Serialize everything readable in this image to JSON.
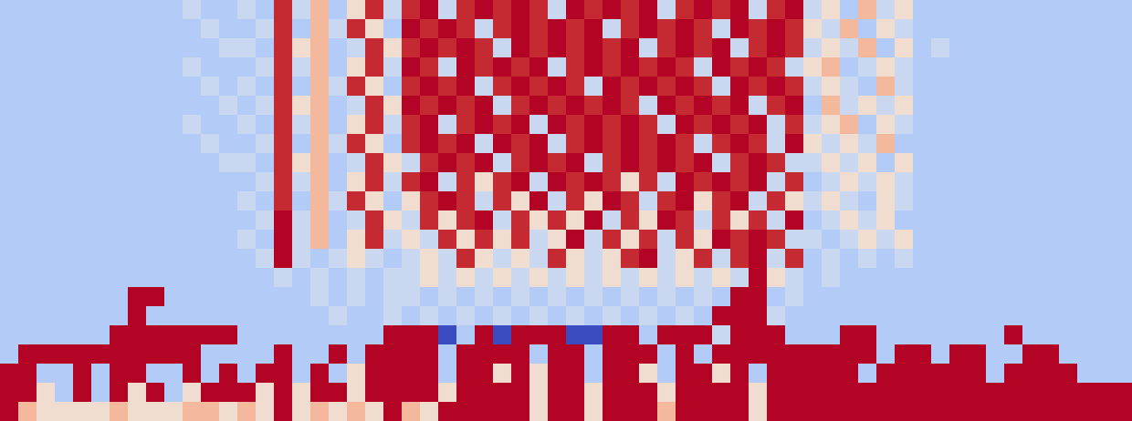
{
  "chart_data": {
    "type": "heatmap",
    "tick_labels": false,
    "zlim": [
      0,
      9
    ],
    "z": [
      [
        3,
        3,
        3,
        3,
        3,
        3,
        3,
        3,
        3,
        3,
        4,
        3,
        3,
        4,
        3,
        8,
        4,
        6,
        3,
        5,
        8,
        4,
        8,
        9,
        4,
        8,
        9,
        8,
        9,
        8,
        4,
        9,
        8,
        9,
        8,
        9,
        4,
        8,
        9,
        8,
        9,
        4,
        8,
        9,
        4,
        5,
        3,
        6,
        4,
        5,
        3,
        3,
        3,
        3,
        3,
        3,
        3,
        3,
        3,
        3,
        3,
        3
      ],
      [
        3,
        3,
        3,
        3,
        3,
        3,
        3,
        3,
        3,
        3,
        3,
        4,
        3,
        3,
        4,
        8,
        3,
        6,
        4,
        8,
        5,
        3,
        9,
        8,
        9,
        8,
        4,
        8,
        9,
        8,
        9,
        8,
        9,
        4,
        8,
        9,
        8,
        9,
        8,
        4,
        9,
        8,
        9,
        8,
        5,
        4,
        6,
        3,
        5,
        4,
        3,
        3,
        3,
        3,
        3,
        3,
        3,
        3,
        3,
        3,
        3,
        3
      ],
      [
        3,
        3,
        3,
        3,
        3,
        3,
        3,
        3,
        3,
        3,
        3,
        3,
        4,
        4,
        3,
        8,
        5,
        6,
        3,
        4,
        8,
        5,
        8,
        9,
        8,
        9,
        8,
        4,
        9,
        8,
        9,
        8,
        9,
        8,
        9,
        4,
        8,
        9,
        8,
        9,
        4,
        8,
        9,
        8,
        4,
        5,
        4,
        6,
        3,
        5,
        3,
        4,
        3,
        3,
        3,
        3,
        3,
        3,
        3,
        3,
        3,
        3
      ],
      [
        3,
        3,
        3,
        3,
        3,
        3,
        3,
        3,
        3,
        3,
        4,
        3,
        3,
        3,
        4,
        8,
        4,
        6,
        3,
        5,
        8,
        4,
        9,
        8,
        4,
        9,
        8,
        9,
        8,
        9,
        4,
        8,
        9,
        8,
        9,
        8,
        9,
        8,
        4,
        9,
        8,
        9,
        8,
        4,
        5,
        6,
        3,
        4,
        5,
        4,
        3,
        3,
        3,
        3,
        3,
        3,
        3,
        3,
        3,
        3,
        3,
        3
      ],
      [
        3,
        3,
        3,
        3,
        3,
        3,
        3,
        3,
        3,
        3,
        3,
        4,
        3,
        4,
        3,
        8,
        3,
        6,
        4,
        8,
        5,
        3,
        8,
        9,
        8,
        9,
        4,
        8,
        9,
        8,
        9,
        8,
        4,
        9,
        8,
        9,
        8,
        9,
        8,
        4,
        9,
        8,
        9,
        8,
        4,
        5,
        4,
        3,
        6,
        4,
        3,
        3,
        3,
        3,
        3,
        3,
        3,
        3,
        3,
        3,
        3,
        3
      ],
      [
        3,
        3,
        3,
        3,
        3,
        3,
        3,
        3,
        3,
        3,
        3,
        3,
        4,
        3,
        4,
        8,
        5,
        6,
        3,
        4,
        8,
        5,
        9,
        8,
        9,
        8,
        9,
        4,
        8,
        9,
        8,
        9,
        8,
        9,
        8,
        4,
        9,
        8,
        9,
        8,
        9,
        4,
        8,
        9,
        3,
        6,
        4,
        5,
        4,
        5,
        3,
        3,
        3,
        3,
        3,
        3,
        3,
        3,
        3,
        3,
        3,
        3
      ],
      [
        3,
        3,
        3,
        3,
        3,
        3,
        3,
        3,
        3,
        3,
        4,
        3,
        3,
        4,
        3,
        8,
        4,
        6,
        3,
        5,
        8,
        4,
        8,
        9,
        4,
        8,
        9,
        8,
        9,
        4,
        9,
        8,
        9,
        8,
        9,
        8,
        4,
        9,
        8,
        9,
        8,
        9,
        4,
        8,
        4,
        5,
        6,
        3,
        5,
        4,
        3,
        3,
        3,
        3,
        3,
        3,
        3,
        3,
        3,
        3,
        3,
        3
      ],
      [
        3,
        3,
        3,
        3,
        3,
        3,
        3,
        3,
        3,
        3,
        3,
        4,
        3,
        3,
        4,
        8,
        3,
        6,
        4,
        8,
        5,
        3,
        8,
        9,
        8,
        9,
        4,
        9,
        8,
        9,
        4,
        8,
        9,
        8,
        9,
        8,
        9,
        8,
        4,
        8,
        9,
        8,
        4,
        9,
        5,
        4,
        5,
        4,
        6,
        3,
        3,
        3,
        3,
        3,
        3,
        3,
        3,
        3,
        3,
        3,
        3,
        3
      ],
      [
        3,
        3,
        3,
        3,
        3,
        3,
        3,
        3,
        3,
        3,
        3,
        3,
        4,
        4,
        3,
        8,
        5,
        6,
        3,
        4,
        8,
        5,
        4,
        8,
        9,
        8,
        9,
        4,
        8,
        9,
        8,
        9,
        4,
        8,
        9,
        8,
        9,
        8,
        9,
        4,
        8,
        9,
        8,
        4,
        4,
        5,
        4,
        5,
        3,
        5,
        3,
        3,
        3,
        3,
        3,
        3,
        3,
        3,
        3,
        3,
        3,
        3
      ],
      [
        3,
        3,
        3,
        3,
        3,
        3,
        3,
        3,
        3,
        3,
        3,
        3,
        3,
        3,
        4,
        8,
        4,
        6,
        3,
        5,
        8,
        4,
        8,
        9,
        4,
        8,
        5,
        8,
        9,
        4,
        9,
        8,
        9,
        8,
        5,
        8,
        4,
        9,
        8,
        9,
        8,
        9,
        4,
        8,
        3,
        4,
        5,
        4,
        5,
        4,
        3,
        3,
        3,
        3,
        3,
        3,
        3,
        3,
        3,
        3,
        3,
        3
      ],
      [
        3,
        3,
        3,
        3,
        3,
        3,
        3,
        3,
        3,
        3,
        3,
        3,
        3,
        4,
        3,
        8,
        3,
        6,
        4,
        8,
        5,
        3,
        5,
        8,
        9,
        8,
        4,
        8,
        5,
        9,
        4,
        8,
        5,
        9,
        8,
        4,
        8,
        9,
        5,
        8,
        9,
        4,
        8,
        5,
        4,
        5,
        4,
        3,
        5,
        4,
        3,
        3,
        3,
        3,
        3,
        3,
        3,
        3,
        3,
        3,
        3,
        3
      ],
      [
        3,
        3,
        3,
        3,
        3,
        3,
        3,
        3,
        3,
        3,
        3,
        3,
        3,
        3,
        4,
        9,
        4,
        6,
        3,
        4,
        8,
        5,
        4,
        8,
        5,
        8,
        9,
        4,
        8,
        5,
        8,
        5,
        9,
        4,
        8,
        5,
        9,
        8,
        4,
        8,
        5,
        8,
        4,
        9,
        3,
        4,
        5,
        4,
        5,
        3,
        3,
        3,
        3,
        3,
        3,
        3,
        3,
        3,
        3,
        3,
        3,
        3
      ],
      [
        3,
        3,
        3,
        3,
        3,
        3,
        3,
        3,
        3,
        3,
        3,
        3,
        3,
        4,
        3,
        9,
        4,
        6,
        3,
        5,
        8,
        4,
        5,
        4,
        8,
        5,
        8,
        5,
        8,
        4,
        5,
        9,
        4,
        8,
        5,
        8,
        4,
        8,
        5,
        9,
        8,
        9,
        8,
        4,
        4,
        3,
        4,
        5,
        4,
        5,
        3,
        3,
        3,
        3,
        3,
        3,
        3,
        3,
        3,
        3,
        3,
        3
      ],
      [
        3,
        3,
        3,
        3,
        3,
        3,
        3,
        3,
        3,
        3,
        3,
        3,
        3,
        3,
        4,
        9,
        4,
        3,
        4,
        5,
        4,
        3,
        4,
        5,
        4,
        8,
        5,
        4,
        5,
        4,
        8,
        5,
        4,
        5,
        8,
        9,
        4,
        5,
        8,
        4,
        8,
        9,
        4,
        8,
        3,
        4,
        3,
        4,
        3,
        4,
        3,
        3,
        3,
        3,
        3,
        3,
        3,
        3,
        3,
        3,
        3,
        3
      ],
      [
        3,
        3,
        3,
        3,
        3,
        3,
        3,
        3,
        3,
        3,
        3,
        3,
        3,
        3,
        3,
        4,
        3,
        4,
        3,
        4,
        3,
        4,
        4,
        5,
        4,
        5,
        4,
        5,
        4,
        5,
        4,
        5,
        4,
        5,
        4,
        5,
        4,
        5,
        4,
        5,
        4,
        9,
        5,
        4,
        3,
        4,
        3,
        3,
        3,
        3,
        3,
        3,
        3,
        3,
        3,
        3,
        3,
        3,
        3,
        3,
        3,
        3
      ],
      [
        3,
        3,
        3,
        3,
        3,
        3,
        3,
        9,
        9,
        3,
        3,
        3,
        3,
        3,
        3,
        3,
        3,
        4,
        3,
        4,
        3,
        4,
        4,
        3,
        4,
        3,
        4,
        3,
        4,
        3,
        4,
        3,
        4,
        3,
        4,
        3,
        4,
        3,
        4,
        3,
        9,
        9,
        3,
        4,
        3,
        3,
        3,
        3,
        3,
        3,
        3,
        3,
        3,
        3,
        3,
        3,
        3,
        3,
        3,
        3,
        3,
        3
      ],
      [
        3,
        3,
        3,
        3,
        3,
        3,
        3,
        9,
        3,
        3,
        3,
        3,
        3,
        3,
        3,
        3,
        3,
        3,
        4,
        3,
        3,
        4,
        3,
        4,
        3,
        4,
        3,
        4,
        3,
        4,
        3,
        4,
        3,
        4,
        3,
        4,
        3,
        4,
        3,
        9,
        9,
        9,
        4,
        3,
        3,
        3,
        3,
        3,
        3,
        3,
        3,
        3,
        3,
        3,
        3,
        3,
        3,
        3,
        3,
        3,
        3,
        3
      ],
      [
        3,
        3,
        3,
        3,
        3,
        3,
        9,
        9,
        9,
        9,
        9,
        9,
        9,
        3,
        3,
        3,
        3,
        3,
        3,
        3,
        3,
        9,
        9,
        9,
        0,
        3,
        9,
        0,
        9,
        9,
        9,
        0,
        0,
        9,
        9,
        3,
        9,
        9,
        9,
        4,
        9,
        9,
        9,
        3,
        3,
        3,
        9,
        9,
        3,
        3,
        3,
        3,
        3,
        3,
        3,
        9,
        3,
        3,
        3,
        3,
        3,
        3
      ],
      [
        3,
        9,
        9,
        9,
        9,
        9,
        9,
        9,
        9,
        9,
        9,
        3,
        3,
        3,
        3,
        9,
        3,
        3,
        9,
        3,
        9,
        9,
        9,
        9,
        3,
        9,
        9,
        9,
        9,
        3,
        9,
        9,
        3,
        9,
        9,
        9,
        3,
        9,
        3,
        9,
        9,
        9,
        9,
        9,
        9,
        9,
        9,
        9,
        3,
        9,
        9,
        3,
        9,
        9,
        3,
        3,
        9,
        9,
        3,
        3,
        3,
        3
      ],
      [
        9,
        9,
        3,
        3,
        9,
        3,
        9,
        9,
        3,
        3,
        9,
        3,
        9,
        3,
        9,
        9,
        3,
        9,
        3,
        5,
        9,
        9,
        9,
        9,
        3,
        9,
        9,
        5,
        9,
        5,
        9,
        9,
        3,
        9,
        9,
        5,
        3,
        9,
        9,
        5,
        9,
        3,
        9,
        9,
        9,
        9,
        9,
        3,
        9,
        9,
        9,
        9,
        9,
        9,
        3,
        9,
        9,
        9,
        9,
        3,
        3,
        3
      ],
      [
        9,
        9,
        5,
        3,
        9,
        3,
        9,
        5,
        9,
        3,
        5,
        9,
        9,
        9,
        5,
        9,
        5,
        9,
        9,
        5,
        9,
        9,
        9,
        9,
        5,
        9,
        9,
        9,
        9,
        5,
        9,
        9,
        5,
        9,
        9,
        9,
        5,
        9,
        9,
        9,
        9,
        5,
        9,
        9,
        9,
        9,
        9,
        9,
        9,
        9,
        9,
        9,
        9,
        9,
        9,
        9,
        9,
        9,
        9,
        9,
        9,
        9
      ],
      [
        9,
        6,
        5,
        5,
        5,
        5,
        6,
        5,
        5,
        5,
        6,
        6,
        5,
        6,
        5,
        9,
        5,
        6,
        5,
        6,
        5,
        9,
        6,
        5,
        9,
        9,
        9,
        9,
        9,
        5,
        9,
        9,
        5,
        9,
        9,
        9,
        6,
        9,
        9,
        9,
        9,
        5,
        9,
        9,
        9,
        9,
        9,
        9,
        9,
        9,
        9,
        9,
        9,
        9,
        9,
        9,
        9,
        9,
        9,
        9,
        9,
        9
      ]
    ]
  }
}
